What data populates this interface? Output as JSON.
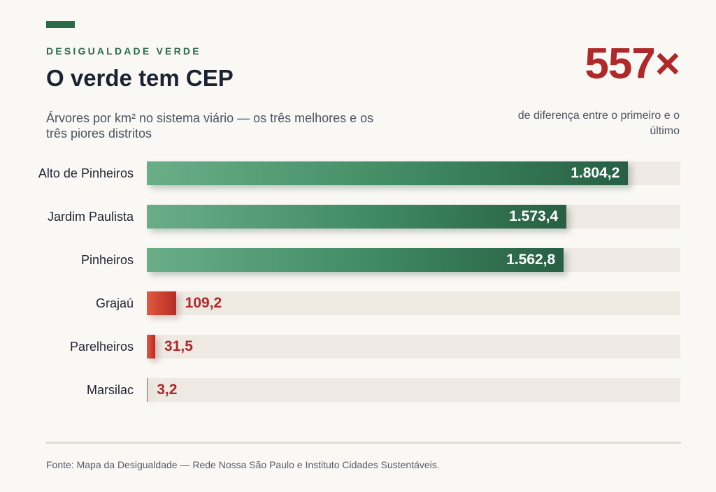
{
  "header": {
    "kicker": "DESIGUALDADE VERDE",
    "title": "O verde tem CEP",
    "subtitle": "Árvores por km² no sistema viário — os três melhores e os três piores distritos"
  },
  "highlight": {
    "value": "557×",
    "caption": "de diferença entre o primeiro e o último"
  },
  "colors": {
    "green_dark": "#275f43",
    "green_light": "#6aae88",
    "red": "#b72a25",
    "red_light": "#e05a3f",
    "track": "#eee9e3"
  },
  "chart_data": {
    "type": "bar",
    "orientation": "horizontal",
    "title": "O verde tem CEP",
    "subtitle": "Árvores por km² no sistema viário — os três melhores e os três piores distritos",
    "xlim": [
      0,
      2000
    ],
    "categories": [
      "Alto de Pinheiros",
      "Jardim Paulista",
      "Pinheiros",
      "Grajaú",
      "Parelheiros",
      "Marsilac"
    ],
    "values": [
      1804.2,
      1573.4,
      1562.8,
      109.2,
      31.5,
      3.2
    ],
    "value_labels": [
      "1.804,2",
      "1.573,4",
      "1.562,8",
      "109,2",
      "31,5",
      "3,2"
    ],
    "groups": [
      "top",
      "top",
      "top",
      "bottom",
      "bottom",
      "bottom"
    ]
  },
  "footer": {
    "source": "Fonte: Mapa da Desigualdade — Rede Nossa São Paulo e Instituto Cidades Sustentáveis."
  }
}
